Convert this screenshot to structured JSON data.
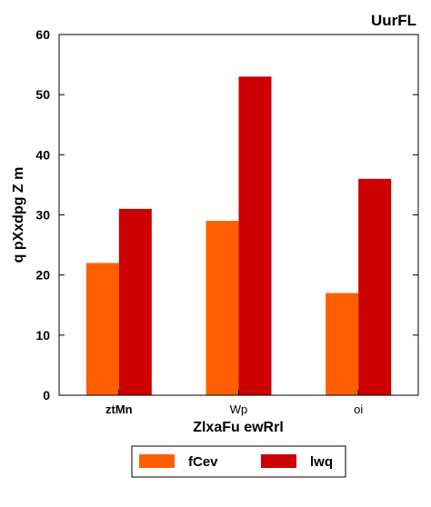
{
  "chart_data": {
    "type": "bar",
    "title": "UurFL",
    "xlabel": "ZlxaFu ewRrl",
    "ylabel": "q  pXxdpg Z m",
    "categories": [
      "ztMn",
      "Wp",
      "oi"
    ],
    "series": [
      {
        "name": "fCev",
        "values": [
          22,
          29,
          17
        ],
        "color": "#ff5f00"
      },
      {
        "name": "lwq",
        "values": [
          31,
          53,
          36
        ],
        "color": "#cc0000"
      }
    ],
    "ylim": [
      0,
      60
    ],
    "yticks": [
      0,
      10,
      20,
      30,
      40,
      50,
      60
    ],
    "grid": false,
    "legend_position": "bottom-center"
  }
}
